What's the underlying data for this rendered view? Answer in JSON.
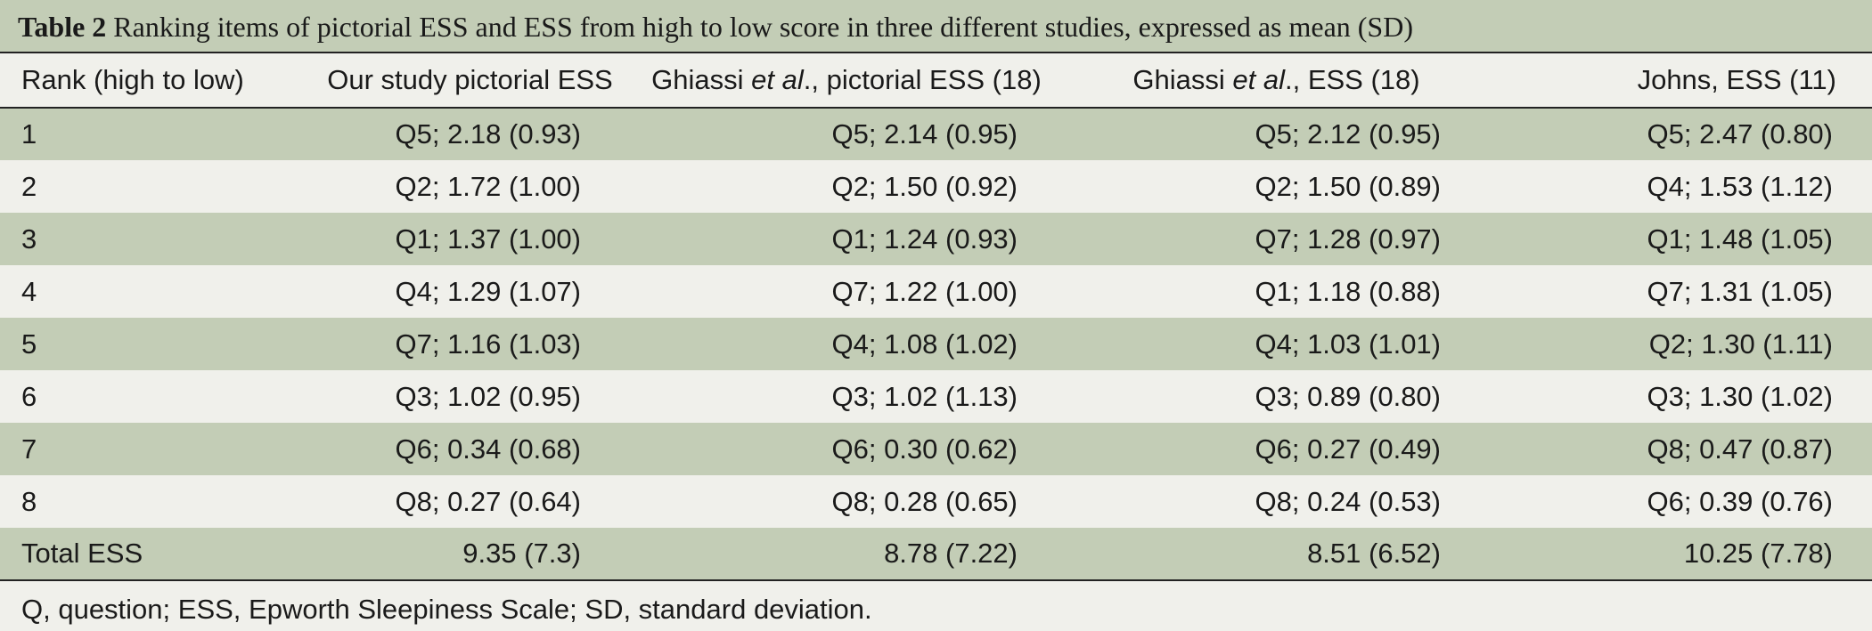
{
  "caption": {
    "label": "Table 2",
    "text": "Ranking items of pictorial ESS and ESS from high to low score in three different studies, expressed as mean (SD)"
  },
  "columns": [
    {
      "pre": "Rank (high to low)",
      "em": "",
      "post": ""
    },
    {
      "pre": "Our study pictorial ESS",
      "em": "",
      "post": ""
    },
    {
      "pre": "Ghiassi ",
      "em": "et al",
      "post": "., pictorial ESS (18)"
    },
    {
      "pre": "Ghiassi ",
      "em": "et al",
      "post": "., ESS (18)"
    },
    {
      "pre": "Johns, ESS (11)",
      "em": "",
      "post": ""
    }
  ],
  "rows": [
    [
      "1",
      "Q5; 2.18 (0.93)",
      "Q5; 2.14 (0.95)",
      "Q5; 2.12 (0.95)",
      "Q5; 2.47 (0.80)"
    ],
    [
      "2",
      "Q2; 1.72 (1.00)",
      "Q2; 1.50 (0.92)",
      "Q2; 1.50 (0.89)",
      "Q4; 1.53 (1.12)"
    ],
    [
      "3",
      "Q1; 1.37 (1.00)",
      "Q1; 1.24 (0.93)",
      "Q7; 1.28 (0.97)",
      "Q1; 1.48 (1.05)"
    ],
    [
      "4",
      "Q4; 1.29 (1.07)",
      "Q7; 1.22 (1.00)",
      "Q1; 1.18 (0.88)",
      "Q7; 1.31 (1.05)"
    ],
    [
      "5",
      "Q7; 1.16 (1.03)",
      "Q4; 1.08 (1.02)",
      "Q4; 1.03 (1.01)",
      "Q2; 1.30 (1.11)"
    ],
    [
      "6",
      "Q3; 1.02 (0.95)",
      "Q3; 1.02 (1.13)",
      "Q3; 0.89 (0.80)",
      "Q3; 1.30 (1.02)"
    ],
    [
      "7",
      "Q6; 0.34 (0.68)",
      "Q6; 0.30 (0.62)",
      "Q6; 0.27 (0.49)",
      "Q8; 0.47 (0.87)"
    ],
    [
      "8",
      "Q8; 0.27 (0.64)",
      "Q8; 0.28 (0.65)",
      "Q8; 0.24 (0.53)",
      "Q6; 0.39 (0.76)"
    ],
    [
      "Total ESS",
      "9.35 (7.3)",
      "8.78 (7.22)",
      "8.51 (6.52)",
      "10.25 (7.78)"
    ]
  ],
  "footnote": "Q, question; ESS, Epworth Sleepiness Scale; SD, standard deviation."
}
